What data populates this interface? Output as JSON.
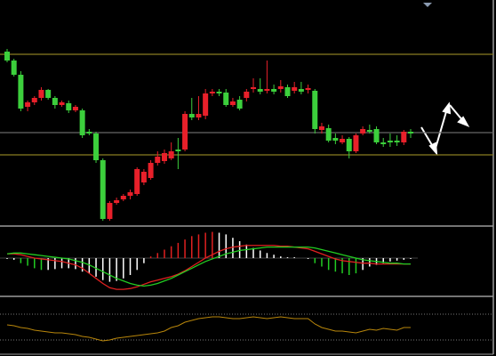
{
  "chart_data": [
    {
      "type": "candlestick",
      "ylim": [
        0,
        250
      ],
      "up_color": "#e8202a",
      "down_color": "#3ccf3c",
      "levels": [
        {
          "value": 189,
          "color": "#8a7d22"
        },
        {
          "value": 101,
          "color": "#666666"
        },
        {
          "value": 76,
          "color": "#8a7d22"
        }
      ],
      "open": [
        192,
        182,
        166,
        130,
        135,
        140,
        149,
        140,
        132,
        134,
        126,
        126,
        102,
        100,
        70,
        4,
        22,
        26,
        30,
        32,
        45,
        50,
        67,
        69,
        72,
        82,
        82,
        122,
        118,
        120,
        145,
        147,
        146,
        132,
        138,
        140,
        150,
        150,
        148,
        150,
        150,
        152,
        148,
        150,
        149,
        148,
        104,
        106,
        95,
        90,
        94,
        80,
        100,
        104,
        105,
        90,
        92,
        92,
        90,
        102
      ],
      "high": [
        195,
        184,
        170,
        137,
        142,
        152,
        150,
        142,
        137,
        137,
        132,
        128,
        105,
        102,
        72,
        24,
        28,
        32,
        37,
        62,
        60,
        70,
        80,
        82,
        90,
        95,
        125,
        140,
        142,
        150,
        150,
        150,
        150,
        140,
        142,
        150,
        162,
        162,
        182,
        155,
        160,
        155,
        158,
        158,
        155,
        150,
        112,
        110,
        100,
        98,
        96,
        100,
        108,
        110,
        108,
        95,
        100,
        98,
        104,
        105
      ],
      "low": [
        180,
        164,
        125,
        125,
        132,
        137,
        138,
        128,
        130,
        123,
        124,
        95,
        98,
        67,
        2,
        2,
        20,
        24,
        26,
        30,
        42,
        48,
        64,
        66,
        70,
        60,
        80,
        115,
        115,
        116,
        142,
        142,
        130,
        130,
        126,
        136,
        146,
        144,
        145,
        144,
        146,
        140,
        145,
        144,
        145,
        100,
        100,
        90,
        88,
        88,
        72,
        78,
        98,
        100,
        88,
        85,
        85,
        86,
        87,
        95
      ],
      "close": [
        182,
        166,
        128,
        135,
        140,
        149,
        140,
        132,
        135,
        126,
        130,
        98,
        100,
        70,
        4,
        22,
        25,
        30,
        34,
        60,
        57,
        67,
        74,
        78,
        80,
        80,
        122,
        118,
        122,
        145,
        147,
        145,
        132,
        136,
        128,
        147,
        152,
        147,
        150,
        147,
        153,
        142,
        152,
        147,
        151,
        105,
        108,
        92,
        92,
        94,
        80,
        98,
        105,
        102,
        90,
        88,
        90,
        90,
        102,
        100
      ]
    },
    {
      "type": "macd",
      "ylim": [
        -40,
        40
      ],
      "zero_color": "#555555",
      "histogram": [
        -1,
        -2,
        -6,
        -9,
        -12,
        -14,
        -14,
        -13,
        -12,
        -12,
        -13,
        -16,
        -18,
        -22,
        -26,
        -28,
        -27,
        -24,
        -20,
        -14,
        -6,
        2,
        6,
        10,
        14,
        18,
        22,
        26,
        28,
        30,
        31,
        30,
        28,
        24,
        20,
        16,
        12,
        9,
        6,
        4,
        2,
        1,
        1,
        0,
        -1,
        -6,
        -10,
        -14,
        -16,
        -18,
        -20,
        -18,
        -14,
        -10,
        -8,
        -6,
        -4,
        -3,
        -2,
        -1
      ],
      "histogram_colors": [
        "#ffffff",
        "#ffffff",
        "#22cc22",
        "#22cc22",
        "#22cc22",
        "#22cc22",
        "#ffffff",
        "#ffffff",
        "#ffffff",
        "#ffffff",
        "#ffffff",
        "#ffffff",
        "#ffffff",
        "#ffffff",
        "#ffffff",
        "#ffffff",
        "#ffffff",
        "#ffffff",
        "#ffffff",
        "#ffffff",
        "#ffffff",
        "#e02020",
        "#e02020",
        "#e02020",
        "#e02020",
        "#e02020",
        "#e02020",
        "#e02020",
        "#e02020",
        "#e02020",
        "#e02020",
        "#ffffff",
        "#ffffff",
        "#ffffff",
        "#ffffff",
        "#ffffff",
        "#ffffff",
        "#ffffff",
        "#ffffff",
        "#ffffff",
        "#ffffff",
        "#ffffff",
        "#ffffff",
        "#ffffff",
        "#ffffff",
        "#22cc22",
        "#22cc22",
        "#22cc22",
        "#22cc22",
        "#22cc22",
        "#22cc22",
        "#22cc22",
        "#ffffff",
        "#ffffff",
        "#ffffff",
        "#ffffff",
        "#ffffff",
        "#ffffff",
        "#ffffff",
        "#ffffff"
      ],
      "series": [
        {
          "color": "#e02020",
          "values": [
            5,
            5,
            4,
            2,
            0,
            -1,
            -2,
            -3,
            -4,
            -6,
            -8,
            -12,
            -18,
            -24,
            -30,
            -35,
            -37,
            -37,
            -36,
            -34,
            -31,
            -28,
            -26,
            -24,
            -22,
            -19,
            -15,
            -10,
            -5,
            0,
            4,
            8,
            11,
            13,
            14,
            15,
            15,
            15,
            15,
            15,
            14,
            14,
            13,
            12,
            11,
            8,
            5,
            2,
            -1,
            -3,
            -4,
            -5,
            -6,
            -6,
            -7,
            -7,
            -7,
            -7,
            -7,
            -7
          ]
        },
        {
          "color": "#22cc22",
          "values": [
            5,
            6,
            6,
            5,
            4,
            3,
            2,
            1,
            0,
            -1,
            -3,
            -5,
            -8,
            -12,
            -16,
            -20,
            -24,
            -27,
            -30,
            -32,
            -33,
            -32,
            -30,
            -27,
            -24,
            -20,
            -16,
            -12,
            -8,
            -4,
            -1,
            2,
            5,
            7,
            9,
            10,
            11,
            12,
            13,
            13,
            13,
            13,
            13,
            13,
            13,
            12,
            10,
            8,
            6,
            4,
            2,
            0,
            -2,
            -3,
            -4,
            -5,
            -6,
            -6,
            -7,
            -7
          ]
        }
      ]
    },
    {
      "type": "line",
      "ylim": [
        0,
        60
      ],
      "levels": [
        {
          "value": 43,
          "color": "#777777"
        },
        {
          "value": 14,
          "color": "#777777"
        }
      ],
      "series": [
        {
          "color": "#b8860b",
          "values": [
            31,
            30,
            28,
            27,
            25,
            24,
            23,
            22,
            22,
            21,
            20,
            18,
            17,
            15,
            13,
            14,
            16,
            17,
            18,
            19,
            20,
            21,
            22,
            24,
            28,
            30,
            34,
            36,
            38,
            39,
            40,
            40,
            39,
            38,
            38,
            39,
            40,
            39,
            38,
            39,
            40,
            39,
            38,
            38,
            38,
            32,
            28,
            26,
            24,
            24,
            23,
            22,
            24,
            26,
            25,
            27,
            26,
            25,
            28,
            28
          ]
        }
      ]
    }
  ]
}
